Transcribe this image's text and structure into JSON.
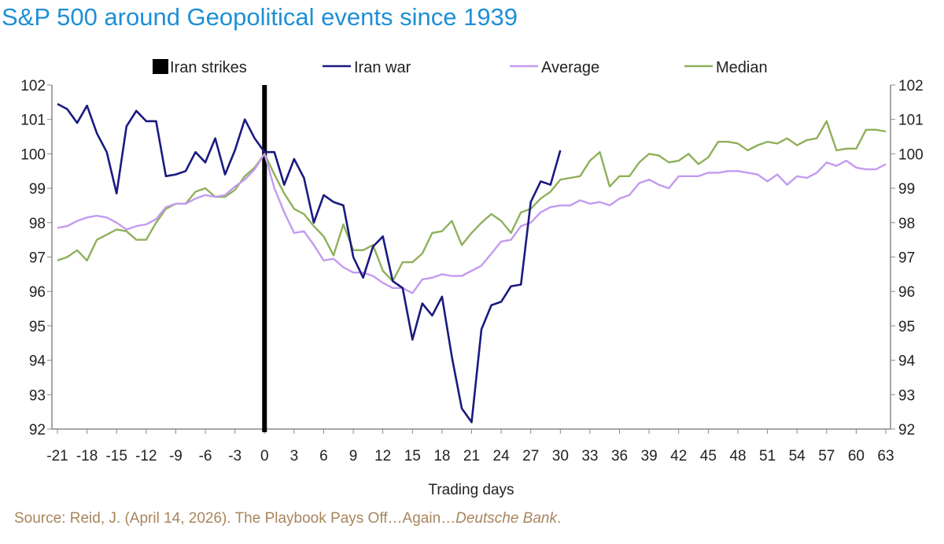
{
  "chart_data": {
    "type": "line",
    "title": "S&P 500 around Geopolitical events since 1939",
    "xlabel": "Trading days",
    "ylabel": "",
    "xlim": [
      -21,
      63
    ],
    "ylim": [
      92,
      102
    ],
    "x_ticks": [
      "-21",
      "-18",
      "-15",
      "-12",
      "-9",
      "-6",
      "-3",
      "0",
      "3",
      "6",
      "9",
      "12",
      "15",
      "18",
      "21",
      "24",
      "27",
      "30",
      "33",
      "36",
      "39",
      "42",
      "45",
      "48",
      "51",
      "54",
      "57",
      "60",
      "63"
    ],
    "y_ticks": [
      "92",
      "93",
      "94",
      "95",
      "96",
      "97",
      "98",
      "99",
      "100",
      "101",
      "102"
    ],
    "grid": false,
    "legend_position": "top",
    "event_marker": {
      "name": "Iran strikes",
      "x": 0,
      "color": "#000000"
    },
    "series": [
      {
        "name": "Iran war",
        "color": "#1a1a80",
        "x_start": -21,
        "values": [
          101.45,
          101.3,
          100.9,
          101.4,
          100.6,
          100.05,
          98.85,
          100.8,
          101.25,
          100.95,
          100.95,
          99.35,
          99.4,
          99.5,
          100.05,
          99.75,
          100.45,
          99.4,
          100.1,
          101.0,
          100.45,
          100.05,
          100.05,
          99.1,
          99.85,
          99.3,
          98.0,
          98.8,
          98.6,
          98.5,
          97.0,
          96.4,
          97.3,
          97.6,
          96.3,
          96.1,
          94.6,
          95.65,
          95.3,
          95.85,
          94.1,
          92.6,
          92.2,
          94.9,
          95.6,
          95.7,
          96.15,
          96.2,
          98.6,
          99.2,
          99.1,
          100.1
        ]
      },
      {
        "name": "Average",
        "color": "#c39bf0",
        "x_start": -21,
        "values": [
          97.85,
          97.9,
          98.05,
          98.15,
          98.2,
          98.15,
          98.0,
          97.8,
          97.9,
          97.95,
          98.1,
          98.45,
          98.55,
          98.55,
          98.7,
          98.8,
          98.75,
          98.8,
          99.05,
          99.25,
          99.55,
          100.0,
          99.0,
          98.3,
          97.7,
          97.75,
          97.35,
          96.9,
          96.95,
          96.7,
          96.55,
          96.55,
          96.45,
          96.25,
          96.1,
          96.1,
          95.95,
          96.35,
          96.4,
          96.5,
          96.45,
          96.45,
          96.6,
          96.75,
          97.1,
          97.45,
          97.5,
          97.9,
          98.0,
          98.3,
          98.45,
          98.5,
          98.5,
          98.65,
          98.55,
          98.6,
          98.5,
          98.7,
          98.8,
          99.15,
          99.25,
          99.1,
          99.0,
          99.35,
          99.35,
          99.35,
          99.45,
          99.45,
          99.5,
          99.5,
          99.45,
          99.4,
          99.2,
          99.4,
          99.1,
          99.35,
          99.3,
          99.45,
          99.75,
          99.65,
          99.8,
          99.6,
          99.55,
          99.55,
          99.7
        ]
      },
      {
        "name": "Median",
        "color": "#8fb05a",
        "x_start": -21,
        "values": [
          96.9,
          97.0,
          97.2,
          96.9,
          97.5,
          97.65,
          97.8,
          97.75,
          97.5,
          97.5,
          98.0,
          98.4,
          98.55,
          98.55,
          98.9,
          99.0,
          98.75,
          98.75,
          98.95,
          99.35,
          99.6,
          100.0,
          99.4,
          98.85,
          98.4,
          98.25,
          97.9,
          97.6,
          97.05,
          97.95,
          97.2,
          97.2,
          97.35,
          96.6,
          96.3,
          96.85,
          96.85,
          97.1,
          97.7,
          97.75,
          98.05,
          97.35,
          97.7,
          98.0,
          98.25,
          98.05,
          97.7,
          98.3,
          98.4,
          98.7,
          98.9,
          99.25,
          99.3,
          99.35,
          99.8,
          100.05,
          99.05,
          99.35,
          99.35,
          99.75,
          100.0,
          99.95,
          99.75,
          99.8,
          100.0,
          99.7,
          99.9,
          100.35,
          100.35,
          100.3,
          100.1,
          100.25,
          100.35,
          100.3,
          100.45,
          100.25,
          100.4,
          100.45,
          100.95,
          100.1,
          100.15,
          100.15,
          100.7,
          100.7,
          100.65
        ]
      }
    ]
  },
  "source": {
    "prefix": "Source: Reid, J. (April 14, 2026). The Playbook Pays Off…Again…",
    "publisher": "Deutsche Bank",
    "suffix": "."
  }
}
